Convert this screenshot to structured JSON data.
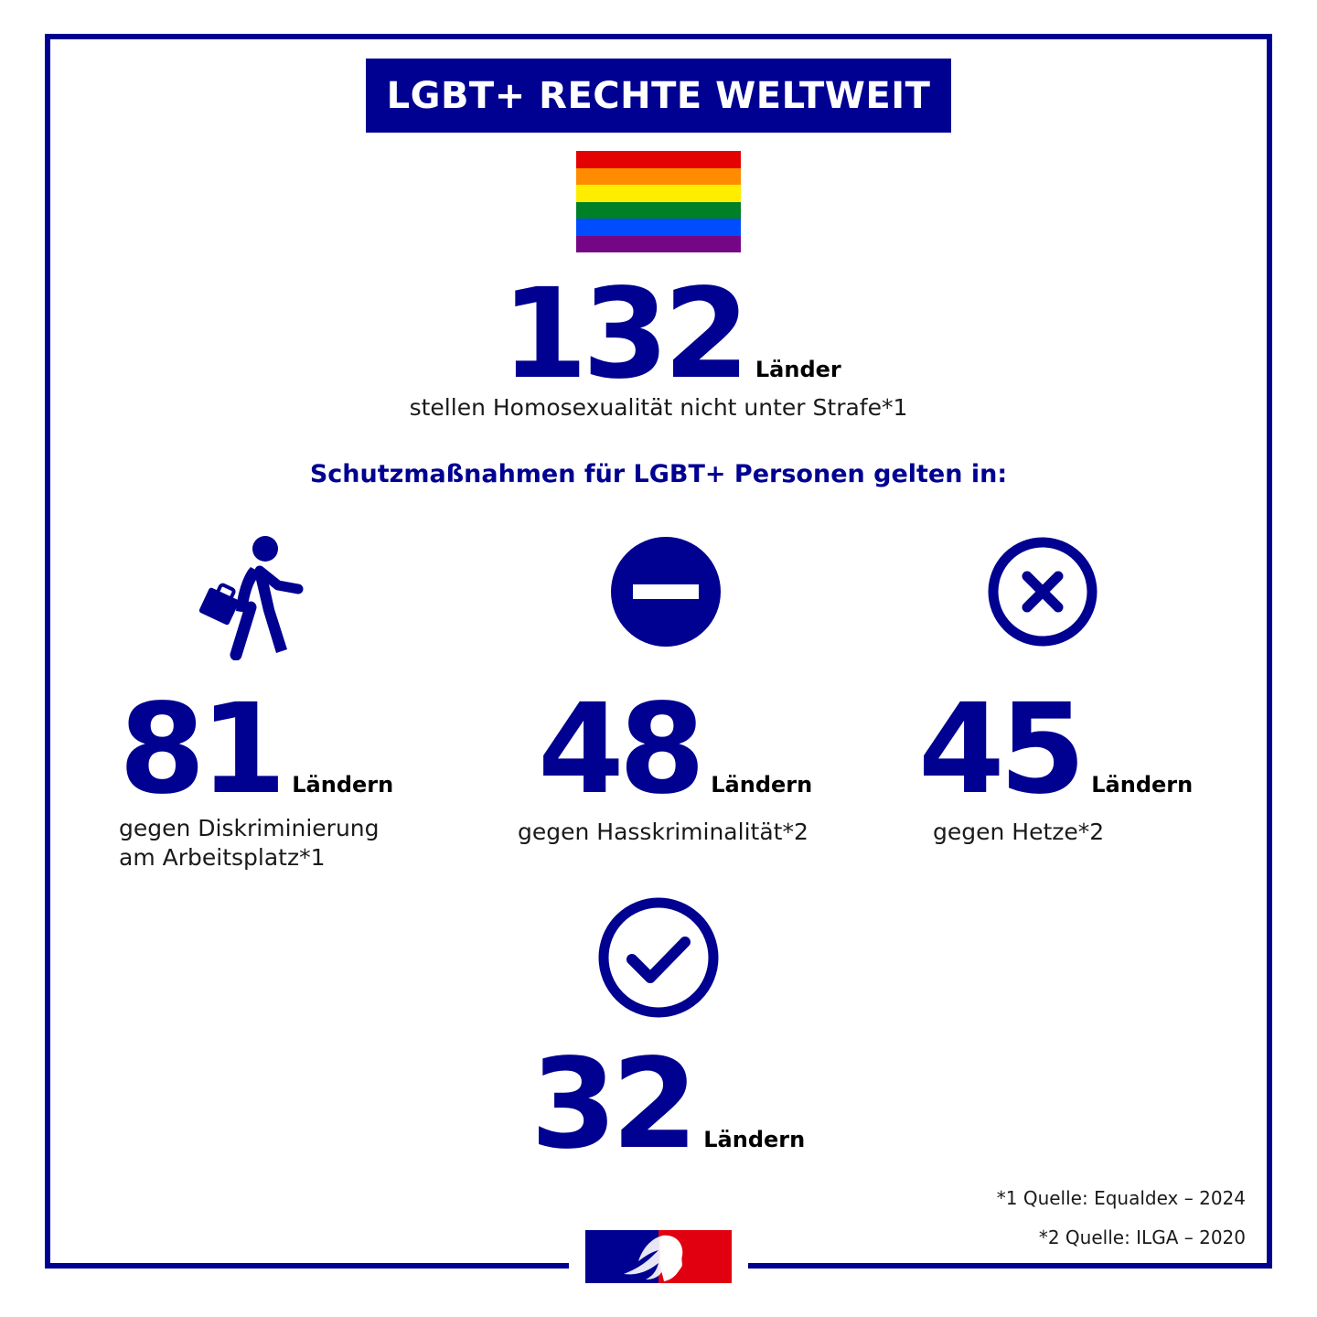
{
  "title": "LGBT+ RECHTE WELTWEIT",
  "flag_colors": [
    "#e40303",
    "#ff8c00",
    "#ffed00",
    "#008026",
    "#004dff",
    "#750787"
  ],
  "colors": {
    "accent": "#000091",
    "marianne_red": "#e1000f"
  },
  "headline": {
    "number": "132",
    "unit": "Länder",
    "description": "stellen Homosexualität nicht unter Strafe*1"
  },
  "subtitle": "Schutzmaßnahmen für LGBT+ Personen gelten in:",
  "stats": [
    {
      "icon": "walking-person-briefcase-icon",
      "number": "81",
      "unit": "Ländern",
      "description_line1": "gegen Diskriminierung",
      "description_line2": "am Arbeitsplatz*1"
    },
    {
      "icon": "no-entry-icon",
      "number": "48",
      "unit": "Ländern",
      "description_line1": "gegen Hasskriminalität*2"
    },
    {
      "icon": "circle-x-icon",
      "number": "45",
      "unit": "Ländern",
      "description_line1": "gegen Hetze*2"
    },
    {
      "icon": "circle-check-icon",
      "number": "32",
      "unit": "Ländern"
    }
  ],
  "footnotes": {
    "first": "*1 Quelle: Equaldex – 2024",
    "second": "*2 Quelle: ILGA – 2020"
  },
  "logo": {
    "icon": "marianne-logo-icon"
  }
}
